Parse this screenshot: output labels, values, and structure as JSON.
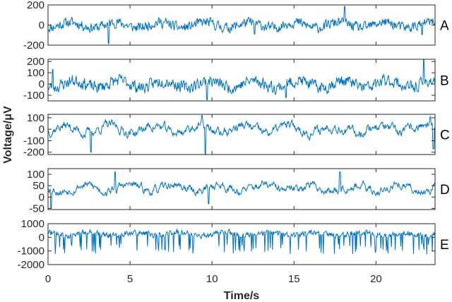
{
  "chart_data": {
    "type": "line",
    "title": "",
    "xlabel": "Time/s",
    "ylabel": "Voltage/μV",
    "xlim": [
      0,
      23.6
    ],
    "x_ticks": [
      0,
      5,
      10,
      15,
      20
    ],
    "line_color": "#0072BD",
    "grid": false,
    "legend": null,
    "panels": [
      {
        "label": "A",
        "ylim": [
          -200,
          200
        ],
        "y_ticks": [
          -200,
          0,
          200
        ],
        "description": "EEG segment, mostly within ±100, dip to about -190 near 3.7s, peak about 190 near 18s",
        "amplitude": 45,
        "spikes": [
          [
            3.7,
            -185
          ],
          [
            18.1,
            185
          ],
          [
            12.6,
            -90
          ],
          [
            22.8,
            -95
          ]
        ],
        "smooth": 0.35,
        "seed": 11
      },
      {
        "label": "B",
        "ylim": [
          -150,
          220
        ],
        "y_ticks": [
          -100,
          0,
          100,
          200
        ],
        "description": "EEG segment, mostly within -100..150, spike to about 220 near 23s",
        "amplitude": 50,
        "spikes": [
          [
            0.3,
            130
          ],
          [
            9.7,
            -140
          ],
          [
            22.9,
            215
          ],
          [
            14.5,
            -120
          ]
        ],
        "smooth": 0.4,
        "seed": 23
      },
      {
        "label": "C",
        "ylim": [
          -220,
          130
        ],
        "y_ticks": [
          -200,
          -100,
          0,
          100
        ],
        "description": "EEG segment, slower oscillations, dips to about -210 near 2.6s and 9.6s",
        "amplitude": 50,
        "spikes": [
          [
            2.6,
            -200
          ],
          [
            9.6,
            -215
          ],
          [
            9.4,
            120
          ],
          [
            23.5,
            -170
          ],
          [
            23.3,
            110
          ]
        ],
        "smooth": 0.75,
        "seed": 37
      },
      {
        "label": "D",
        "ylim": [
          -55,
          125
        ],
        "y_ticks": [
          -50,
          0,
          50,
          100
        ],
        "description": "EEG segment, oscillating about 40, min about -50 near 0.2s, peaks about 110 at 4.1s and 17.8s",
        "amplitude": 22,
        "offset": 40,
        "spikes": [
          [
            0.2,
            -50
          ],
          [
            4.1,
            110
          ],
          [
            17.8,
            110
          ],
          [
            9.8,
            -30
          ]
        ],
        "smooth": 0.75,
        "seed": 53
      },
      {
        "label": "E",
        "ylim": [
          -2000,
          1000
        ],
        "y_ticks": [
          -2000,
          -1000,
          0,
          1000
        ],
        "description": "Seizure-like segment, baseline about 300 with frequent downward spikes to -1500",
        "amplitude": 180,
        "offset": 250,
        "spike_rate": 0.38,
        "spike_depth": -1500,
        "smooth": 0.3,
        "seed": 71
      }
    ]
  },
  "labels": {
    "x_axis_title": "Time/s",
    "y_axis_title": "Voltage/μV"
  }
}
